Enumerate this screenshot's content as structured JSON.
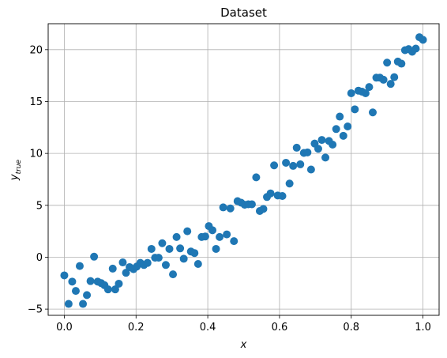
{
  "chart_data": {
    "type": "scatter",
    "title": "Dataset",
    "xlabel": "x",
    "ylabel_main": "y",
    "ylabel_sub": "true",
    "xlim": [
      -0.045,
      1.045
    ],
    "ylim": [
      -5.6,
      22.5
    ],
    "grid": true,
    "marker_color": "#1f77b4",
    "xticks": [
      0.0,
      0.2,
      0.4,
      0.6,
      0.8,
      1.0
    ],
    "xtick_labels": [
      "0.0",
      "0.2",
      "0.4",
      "0.6",
      "0.8",
      "1.0"
    ],
    "yticks": [
      -5,
      0,
      5,
      10,
      15,
      20
    ],
    "ytick_labels": [
      "−5",
      "0",
      "5",
      "10",
      "15",
      "20"
    ],
    "points": [
      [
        0.0,
        -1.75
      ],
      [
        0.012,
        -4.5
      ],
      [
        0.022,
        -2.35
      ],
      [
        0.032,
        -3.25
      ],
      [
        0.043,
        -0.85
      ],
      [
        0.052,
        -4.5
      ],
      [
        0.063,
        -3.65
      ],
      [
        0.073,
        -2.3
      ],
      [
        0.083,
        0.05
      ],
      [
        0.093,
        -2.35
      ],
      [
        0.103,
        -2.5
      ],
      [
        0.112,
        -2.7
      ],
      [
        0.122,
        -3.1
      ],
      [
        0.135,
        -1.1
      ],
      [
        0.142,
        -3.1
      ],
      [
        0.152,
        -2.55
      ],
      [
        0.163,
        -0.5
      ],
      [
        0.172,
        -1.5
      ],
      [
        0.182,
        -0.95
      ],
      [
        0.193,
        -1.15
      ],
      [
        0.202,
        -0.9
      ],
      [
        0.212,
        -0.55
      ],
      [
        0.222,
        -0.75
      ],
      [
        0.232,
        -0.55
      ],
      [
        0.243,
        0.8
      ],
      [
        0.253,
        -0.05
      ],
      [
        0.263,
        -0.05
      ],
      [
        0.273,
        1.35
      ],
      [
        0.283,
        -0.75
      ],
      [
        0.293,
        0.8
      ],
      [
        0.303,
        -1.65
      ],
      [
        0.313,
        1.95
      ],
      [
        0.323,
        0.85
      ],
      [
        0.333,
        -0.15
      ],
      [
        0.343,
        2.5
      ],
      [
        0.353,
        0.55
      ],
      [
        0.363,
        0.4
      ],
      [
        0.373,
        -0.65
      ],
      [
        0.383,
        1.95
      ],
      [
        0.393,
        2.0
      ],
      [
        0.403,
        3.0
      ],
      [
        0.413,
        2.6
      ],
      [
        0.423,
        0.8
      ],
      [
        0.433,
        1.95
      ],
      [
        0.443,
        4.8
      ],
      [
        0.453,
        2.2
      ],
      [
        0.463,
        4.7
      ],
      [
        0.473,
        1.55
      ],
      [
        0.483,
        5.4
      ],
      [
        0.493,
        5.25
      ],
      [
        0.503,
        5.05
      ],
      [
        0.513,
        5.1
      ],
      [
        0.523,
        5.1
      ],
      [
        0.535,
        7.7
      ],
      [
        0.545,
        4.45
      ],
      [
        0.555,
        4.65
      ],
      [
        0.565,
        5.8
      ],
      [
        0.575,
        6.15
      ],
      [
        0.585,
        8.85
      ],
      [
        0.595,
        5.95
      ],
      [
        0.608,
        5.9
      ],
      [
        0.618,
        9.1
      ],
      [
        0.628,
        7.1
      ],
      [
        0.638,
        8.8
      ],
      [
        0.648,
        10.55
      ],
      [
        0.658,
        8.95
      ],
      [
        0.668,
        10.05
      ],
      [
        0.678,
        10.1
      ],
      [
        0.688,
        8.45
      ],
      [
        0.698,
        10.95
      ],
      [
        0.708,
        10.45
      ],
      [
        0.718,
        11.3
      ],
      [
        0.728,
        9.6
      ],
      [
        0.738,
        11.2
      ],
      [
        0.748,
        10.85
      ],
      [
        0.758,
        12.35
      ],
      [
        0.768,
        13.55
      ],
      [
        0.778,
        11.7
      ],
      [
        0.79,
        12.6
      ],
      [
        0.8,
        15.8
      ],
      [
        0.81,
        14.25
      ],
      [
        0.82,
        16.05
      ],
      [
        0.83,
        15.95
      ],
      [
        0.84,
        15.8
      ],
      [
        0.85,
        16.4
      ],
      [
        0.86,
        13.95
      ],
      [
        0.87,
        17.3
      ],
      [
        0.88,
        17.3
      ],
      [
        0.89,
        17.1
      ],
      [
        0.9,
        18.75
      ],
      [
        0.91,
        16.7
      ],
      [
        0.92,
        17.35
      ],
      [
        0.93,
        18.85
      ],
      [
        0.94,
        18.65
      ],
      [
        0.95,
        19.95
      ],
      [
        0.96,
        20.05
      ],
      [
        0.97,
        19.8
      ],
      [
        0.98,
        20.1
      ],
      [
        0.99,
        21.2
      ],
      [
        1.0,
        20.95
      ]
    ]
  }
}
